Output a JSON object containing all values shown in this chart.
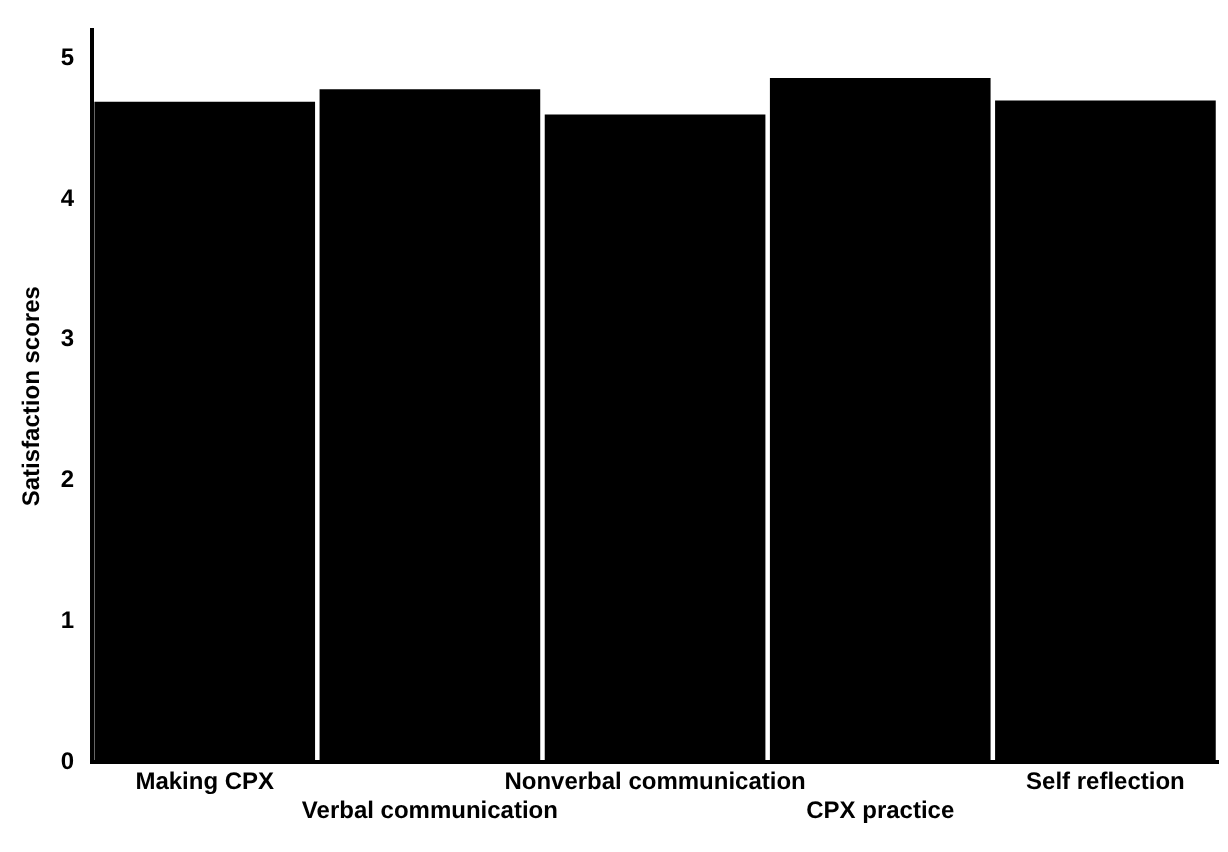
{
  "chart_data": {
    "type": "bar",
    "ylabel": "Satisfaction scores",
    "categories": [
      "Making CPX",
      "Verbal communication",
      "Nonverbal communication",
      "CPX practice",
      "Self reflection"
    ],
    "values": [
      4.69,
      4.78,
      4.6,
      4.86,
      4.7
    ],
    "color": "#000000",
    "ylim": [
      0,
      5.2
    ],
    "yticks": [
      0,
      1,
      2,
      3,
      4,
      5
    ],
    "grid": false
  }
}
